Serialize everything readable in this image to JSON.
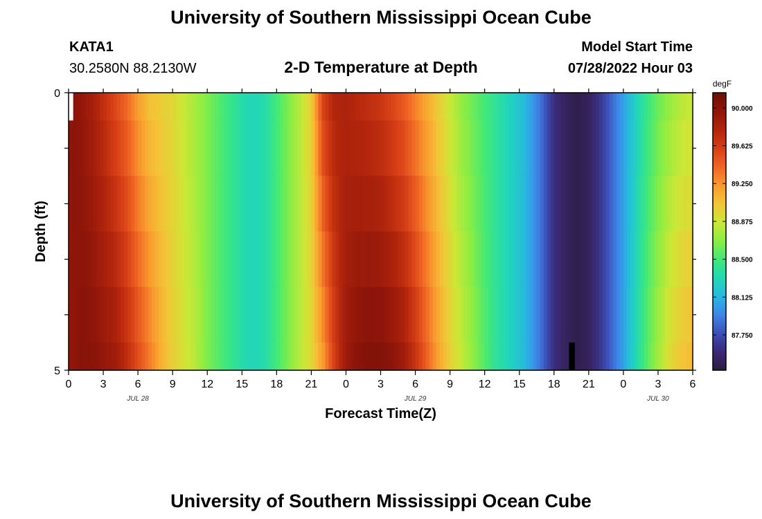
{
  "header": {
    "title": "University of Southern Mississippi Ocean Cube",
    "station": "KATA1",
    "coordinates": "30.2580N  88.2130W",
    "subtitle": "2-D Temperature at Depth",
    "model_start_label": "Model Start Time",
    "model_start_time": "07/28/2022 Hour 03"
  },
  "footer": {
    "title": "University of Southern Mississippi Ocean Cube"
  },
  "chart_data": {
    "type": "heatmap",
    "xlabel": "Forecast Time(Z)",
    "ylabel": "Depth (ft)",
    "x_tick_labels": [
      "0",
      "3",
      "6",
      "9",
      "12",
      "15",
      "18",
      "21",
      "0",
      "3",
      "6",
      "9",
      "12",
      "15",
      "18",
      "21",
      "0",
      "3",
      "6"
    ],
    "date_labels": [
      {
        "label": "JUL 28",
        "at_hours": 6
      },
      {
        "label": "JUL 29",
        "at_hours": 30
      },
      {
        "label": "JUL 30",
        "at_hours": 51
      }
    ],
    "x_range_hours": [
      0,
      54
    ],
    "y_tick_labels": [
      "0",
      "5"
    ],
    "ylim": [
      0,
      5
    ],
    "colorbar": {
      "unit": "degF",
      "min": 87.4,
      "max": 90.15,
      "tick_values": [
        90.0,
        89.625,
        89.25,
        88.875,
        88.5,
        88.125,
        87.75
      ],
      "tick_labels": [
        "90.000",
        "89.625",
        "89.250",
        "88.875",
        "88.500",
        "88.125",
        "87.750"
      ],
      "palette": [
        "#2d1b3f",
        "#3a2a76",
        "#3b4fb7",
        "#3f86e8",
        "#27b9e0",
        "#22d8b4",
        "#41e879",
        "#8ced43",
        "#cde736",
        "#f3c437",
        "#f99a2e",
        "#ef6524",
        "#d63f16",
        "#b2250c",
        "#8e150a",
        "#6e0f06"
      ]
    },
    "depth_layers_ft": [
      0,
      0.5,
      1.5,
      2.5,
      3.5,
      4.5,
      5
    ],
    "time_profile": {
      "hours": [
        0,
        0.5,
        1,
        2,
        3,
        4,
        5,
        6,
        7,
        8,
        9,
        10,
        11,
        12,
        13,
        14,
        15,
        16,
        17,
        18,
        19,
        20,
        21,
        22,
        23,
        24,
        25,
        26,
        27,
        28,
        29,
        30,
        31,
        32,
        33,
        34,
        35,
        36,
        37,
        38,
        39,
        40,
        41,
        42,
        43,
        44,
        45,
        46,
        47,
        48,
        49,
        50,
        51,
        52,
        53,
        54
      ],
      "surface_temp_degF": [
        89.95,
        90.0,
        89.95,
        89.85,
        89.7,
        89.55,
        89.4,
        89.2,
        89.05,
        89.0,
        88.95,
        88.85,
        88.75,
        88.65,
        88.55,
        88.45,
        88.35,
        88.3,
        88.35,
        88.5,
        88.65,
        88.8,
        89.0,
        89.6,
        89.8,
        89.8,
        89.75,
        89.7,
        89.65,
        89.55,
        89.45,
        89.3,
        89.15,
        89.0,
        88.85,
        88.7,
        88.6,
        88.5,
        88.4,
        88.3,
        88.2,
        88.05,
        87.85,
        87.6,
        87.5,
        87.45,
        87.5,
        87.65,
        87.85,
        88.05,
        88.25,
        88.45,
        88.6,
        88.7,
        88.8,
        88.85
      ],
      "deep_temp_degF": [
        89.95,
        89.95,
        90.0,
        90.0,
        89.95,
        89.9,
        89.75,
        89.55,
        89.35,
        89.15,
        89.0,
        88.9,
        88.8,
        88.65,
        88.55,
        88.45,
        88.35,
        88.3,
        88.35,
        88.5,
        88.65,
        88.8,
        88.95,
        89.2,
        89.6,
        89.9,
        90.0,
        90.05,
        90.05,
        90.0,
        89.9,
        89.7,
        89.45,
        89.2,
        89.0,
        88.85,
        88.7,
        88.55,
        88.4,
        88.3,
        88.2,
        88.05,
        87.85,
        87.6,
        87.5,
        87.45,
        87.5,
        87.65,
        87.85,
        88.05,
        88.3,
        88.55,
        88.75,
        88.95,
        89.05,
        89.1
      ]
    },
    "missing_cells": [
      {
        "hours": [
          0,
          0.4
        ],
        "depth_ft": [
          0,
          0.5
        ],
        "fill": "white"
      },
      {
        "hours": [
          43.3,
          43.8
        ],
        "depth_ft": [
          4.5,
          5
        ],
        "fill": "black"
      }
    ]
  }
}
